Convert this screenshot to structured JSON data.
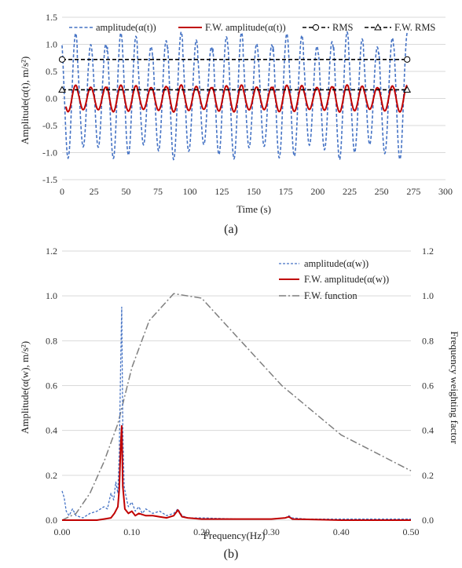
{
  "panel_labels": {
    "a": "(a)",
    "b": "(b)"
  },
  "colors": {
    "raw": "#4472c4",
    "weighted": "#c00000",
    "rms": "#000000",
    "function": "#7f7f7f",
    "grid": "#d9d9d9"
  },
  "chart_data": [
    {
      "type": "line",
      "panel": "(a)",
      "xlabel": "Time (s)",
      "ylabel": "Amplitude(α(t),  m/s²)",
      "xlim": [
        0,
        300
      ],
      "ylim": [
        -1.5,
        1.5
      ],
      "x_ticks": [
        0,
        25,
        50,
        75,
        100,
        125,
        150,
        175,
        200,
        225,
        250,
        275,
        300
      ],
      "y_ticks": [
        1.5,
        1.0,
        0.5,
        0.0,
        -0.5,
        -1.0,
        -1.5
      ],
      "y_tick_labels": [
        "1.5",
        "1.0",
        "0.5",
        "0.0",
        "-0.5",
        "-1.0",
        "-1.5"
      ],
      "grid": "horizontal",
      "legend_position": "top",
      "legend": [
        {
          "label": "amplitude(α(t))",
          "style": "dashed",
          "color": "#4472c4"
        },
        {
          "label": "F.W. amplitude(α(t))",
          "style": "solid",
          "color": "#c00000"
        },
        {
          "label": "RMS",
          "style": "dashed-circle",
          "color": "#000000"
        },
        {
          "label": "F.W. RMS",
          "style": "dashed-triangle",
          "color": "#000000"
        }
      ],
      "series": [
        {
          "name": "amplitude(α(t))",
          "kind": "oscillation",
          "x_range": [
            0,
            270
          ],
          "period_s": 11.8,
          "amplitude_range": [
            0.9,
            1.18
          ],
          "center": 0.05
        },
        {
          "name": "F.W. amplitude(α(t))",
          "kind": "oscillation",
          "x_range": [
            3,
            270
          ],
          "period_s": 11.8,
          "amplitude_range": [
            0.2,
            0.25
          ],
          "center": 0.0
        },
        {
          "name": "RMS",
          "x": [
            0,
            270
          ],
          "y": [
            0.72,
            0.72
          ]
        },
        {
          "name": "F.W. RMS",
          "x": [
            0,
            270
          ],
          "y": [
            0.16,
            0.16
          ]
        }
      ]
    },
    {
      "type": "line",
      "panel": "(b)",
      "xlabel": "Frequency(Hz)",
      "ylabel": "Amplitude(α(w), m/s²)",
      "y2label": "Frequency weighting factor",
      "xlim": [
        0,
        0.5
      ],
      "ylim": [
        0,
        1.2
      ],
      "y2lim": [
        0,
        1.2
      ],
      "x_ticks": [
        0,
        0.1,
        0.2,
        0.3,
        0.4,
        0.5
      ],
      "x_tick_labels": [
        "0.00",
        "0.10",
        "0.20",
        "0.30",
        "0.40",
        "0.50"
      ],
      "y_ticks": [
        0,
        0.2,
        0.4,
        0.6,
        0.8,
        1.0,
        1.2
      ],
      "y_tick_labels": [
        "0.0",
        "0.2",
        "0.4",
        "0.6",
        "0.8",
        "1.0",
        "1.2"
      ],
      "grid": "horizontal",
      "legend_position": "top-right",
      "legend": [
        {
          "label": "amplitude(α(w))",
          "style": "dashed",
          "color": "#4472c4"
        },
        {
          "label": "F.W. amplitude(α(w))",
          "style": "solid",
          "color": "#c00000"
        },
        {
          "label": "F.W. function",
          "style": "dash-dot",
          "color": "#7f7f7f"
        }
      ],
      "series": [
        {
          "name": "amplitude(α(w))",
          "x": [
            0,
            0.003,
            0.006,
            0.01,
            0.015,
            0.02,
            0.03,
            0.04,
            0.05,
            0.06,
            0.065,
            0.07,
            0.074,
            0.077,
            0.08,
            0.082,
            0.084,
            0.0855,
            0.087,
            0.089,
            0.092,
            0.095,
            0.1,
            0.105,
            0.11,
            0.115,
            0.12,
            0.13,
            0.14,
            0.15,
            0.16,
            0.166,
            0.172,
            0.18,
            0.2,
            0.25,
            0.3,
            0.32,
            0.325,
            0.33,
            0.35,
            0.4,
            0.45,
            0.5
          ],
          "y": [
            0.13,
            0.1,
            0.04,
            0.02,
            0.05,
            0.02,
            0.01,
            0.03,
            0.04,
            0.06,
            0.05,
            0.12,
            0.09,
            0.17,
            0.12,
            0.3,
            0.7,
            0.95,
            0.4,
            0.15,
            0.1,
            0.06,
            0.08,
            0.04,
            0.06,
            0.03,
            0.05,
            0.03,
            0.04,
            0.02,
            0.03,
            0.05,
            0.02,
            0.01,
            0.01,
            0.005,
            0.005,
            0.01,
            0.02,
            0.01,
            0.005,
            0.005,
            0.005,
            0.005
          ]
        },
        {
          "name": "F.W. amplitude(α(w))",
          "x": [
            0,
            0.05,
            0.06,
            0.07,
            0.075,
            0.08,
            0.082,
            0.084,
            0.0855,
            0.087,
            0.09,
            0.095,
            0.1,
            0.105,
            0.11,
            0.12,
            0.13,
            0.14,
            0.15,
            0.16,
            0.166,
            0.172,
            0.18,
            0.2,
            0.3,
            0.32,
            0.325,
            0.33,
            0.4,
            0.5
          ],
          "y": [
            0,
            0,
            0.005,
            0.01,
            0.03,
            0.06,
            0.14,
            0.33,
            0.42,
            0.15,
            0.05,
            0.03,
            0.04,
            0.02,
            0.03,
            0.02,
            0.02,
            0.015,
            0.01,
            0.02,
            0.045,
            0.015,
            0.01,
            0.005,
            0.005,
            0.01,
            0.015,
            0.005,
            0.0,
            0.0
          ]
        },
        {
          "name": "F.W. function",
          "x": [
            0,
            0.02,
            0.04,
            0.06,
            0.08,
            0.1,
            0.125,
            0.16,
            0.2,
            0.25,
            0.315,
            0.4,
            0.5
          ],
          "y": [
            0.0,
            0.03,
            0.12,
            0.26,
            0.43,
            0.68,
            0.89,
            1.01,
            0.99,
            0.82,
            0.6,
            0.38,
            0.22
          ]
        }
      ]
    }
  ]
}
